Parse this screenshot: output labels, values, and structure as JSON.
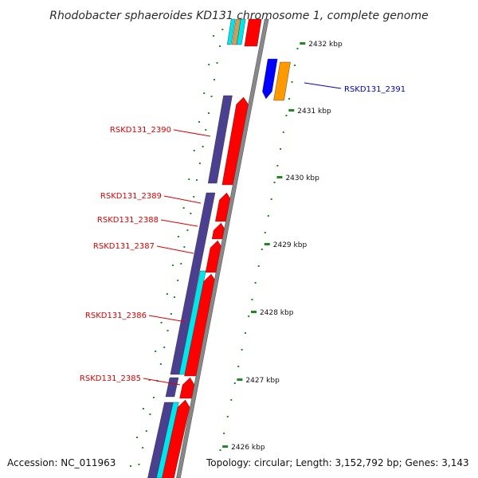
{
  "title": "Rhodobacter sphaeroides KD131 chromosome 1, complete genome",
  "accession_label": "Accession: NC_011963",
  "topology_label": "Topology: circular; Length: 3,152,792 bp; Genes: 3,143",
  "colors": {
    "plus_strand_gene": "#ff0000",
    "minus_strand_gene": "#0000ff",
    "orange_gene": "#ff9900",
    "cog_purple": "#4b3f8f",
    "cog_cyan": "#00e5ee",
    "cog_tan": "#c9a25a",
    "backbone": "#888888",
    "tick_green": "#228822",
    "red_label": "#dd0000",
    "blue_label": "#0000cc"
  },
  "ticks": [
    {
      "label": "2432 kbp"
    },
    {
      "label": "2431 kbp"
    },
    {
      "label": "2430 kbp"
    },
    {
      "label": "2429 kbp"
    },
    {
      "label": "2428 kbp"
    },
    {
      "label": "2427 kbp"
    },
    {
      "label": "2426 kbp"
    }
  ],
  "gene_labels": [
    {
      "label": "RSKD131_2391",
      "color": "blue"
    },
    {
      "label": "RSKD131_2390",
      "color": "red"
    },
    {
      "label": "RSKD131_2389",
      "color": "red"
    },
    {
      "label": "RSKD131_2388",
      "color": "red"
    },
    {
      "label": "RSKD131_2387",
      "color": "red"
    },
    {
      "label": "RSKD131_2386",
      "color": "red"
    },
    {
      "label": "RSKD131_2385",
      "color": "red"
    }
  ]
}
